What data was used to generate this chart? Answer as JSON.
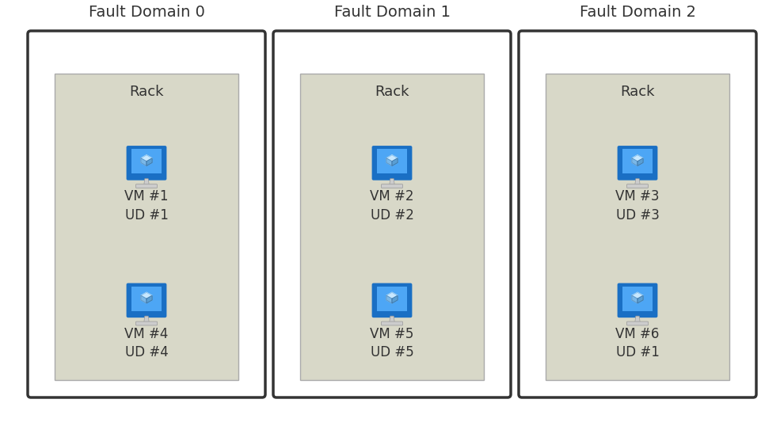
{
  "bg_color": "#ffffff",
  "outer_box_color": "#ffffff",
  "outer_box_edge": "#333333",
  "inner_box_color": "#d8d8c8",
  "inner_box_edge": "#aaaaaa",
  "fault_domains": [
    {
      "title": "Fault Domain 0",
      "rack_label": "Rack",
      "vms": [
        {
          "label": "VM #1\nUD #1",
          "row": 0
        },
        {
          "label": "VM #4\nUD #4",
          "row": 1
        }
      ]
    },
    {
      "title": "Fault Domain 1",
      "rack_label": "Rack",
      "vms": [
        {
          "label": "VM #2\nUD #2",
          "row": 0
        },
        {
          "label": "VM #5\nUD #5",
          "row": 1
        }
      ]
    },
    {
      "title": "Fault Domain 2",
      "rack_label": "Rack",
      "vms": [
        {
          "label": "VM #3\nUD #3",
          "row": 0
        },
        {
          "label": "VM #6\nUD #1",
          "row": 1
        }
      ]
    }
  ],
  "title_fontsize": 14,
  "rack_fontsize": 13,
  "vm_fontsize": 12,
  "text_color": "#333333"
}
